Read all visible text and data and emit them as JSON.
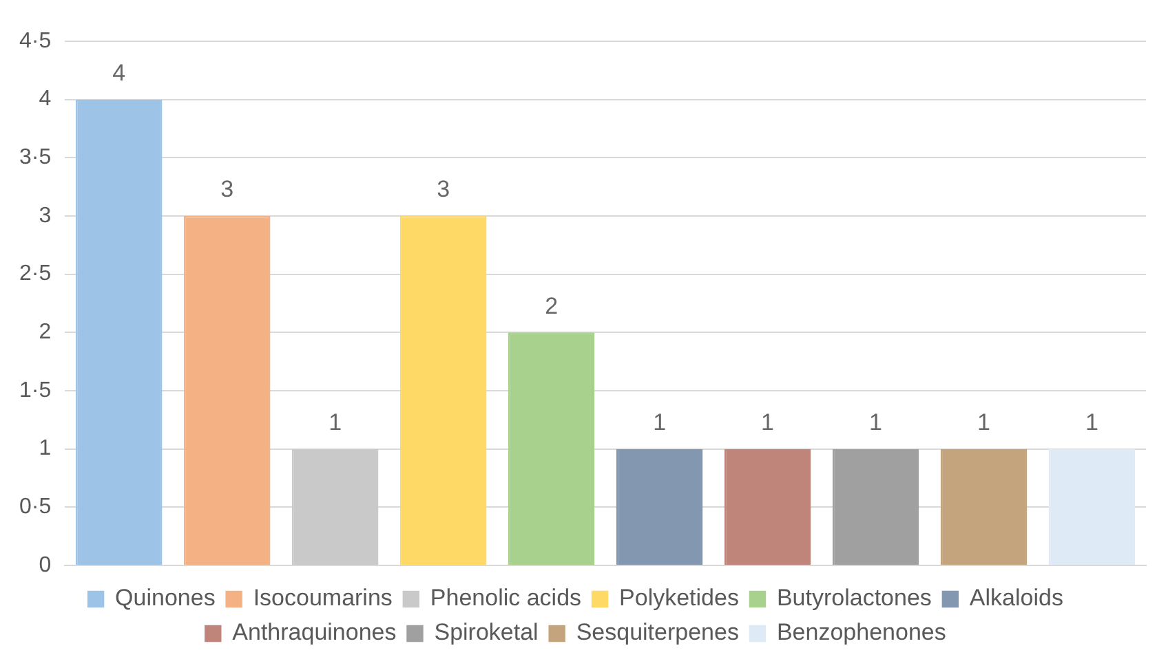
{
  "chart_data": {
    "type": "bar",
    "categories": [
      null,
      null,
      null,
      null,
      null,
      null,
      null,
      null,
      null,
      null
    ],
    "series": [
      {
        "name": "Quinones",
        "color": "#9dc3e6",
        "values": [
          4,
          null,
          null,
          null,
          null,
          null,
          null,
          null,
          null,
          null
        ]
      },
      {
        "name": "Isocoumarins",
        "color": "#f4b183",
        "values": [
          null,
          3,
          null,
          null,
          null,
          null,
          null,
          null,
          null,
          null
        ]
      },
      {
        "name": "Phenolic acids",
        "color": "#c9c9c9",
        "values": [
          null,
          null,
          1,
          null,
          null,
          null,
          null,
          null,
          null,
          null
        ]
      },
      {
        "name": "Polyketides",
        "color": "#ffd966",
        "values": [
          null,
          null,
          null,
          3,
          null,
          null,
          null,
          null,
          null,
          null
        ]
      },
      {
        "name": "Butyrolactones",
        "color": "#a9d18e",
        "values": [
          null,
          null,
          null,
          null,
          2,
          null,
          null,
          null,
          null,
          null
        ]
      },
      {
        "name": "Alkaloids",
        "color": "#8497b0",
        "values": [
          null,
          null,
          null,
          null,
          null,
          1,
          null,
          null,
          null,
          null
        ]
      },
      {
        "name": "Anthraquinones",
        "color": "#c0857a",
        "values": [
          null,
          null,
          null,
          null,
          null,
          null,
          1,
          null,
          null,
          null
        ]
      },
      {
        "name": "Spiroketal",
        "color": "#a0a0a0",
        "values": [
          null,
          null,
          null,
          null,
          null,
          null,
          null,
          1,
          null,
          null
        ]
      },
      {
        "name": "Sesquiterpenes",
        "color": "#c4a47c",
        "values": [
          null,
          null,
          null,
          null,
          null,
          null,
          null,
          null,
          1,
          null
        ]
      },
      {
        "name": "Benzophenones",
        "color": "#deebf7",
        "values": [
          null,
          null,
          null,
          null,
          null,
          null,
          null,
          null,
          null,
          1
        ]
      }
    ],
    "ylim": [
      0,
      4.5
    ],
    "yticks": [
      0,
      {
        "value": 0.5,
        "label": "0·5"
      },
      1,
      {
        "value": 1.5,
        "label": "1·5"
      },
      2,
      {
        "value": 2.5,
        "label": "2·5"
      },
      3,
      {
        "value": 3.5,
        "label": "3·5"
      },
      4,
      {
        "value": 4.5,
        "label": "4·5"
      }
    ],
    "grid": "y",
    "legend": "bottom",
    "data_labels": true
  }
}
